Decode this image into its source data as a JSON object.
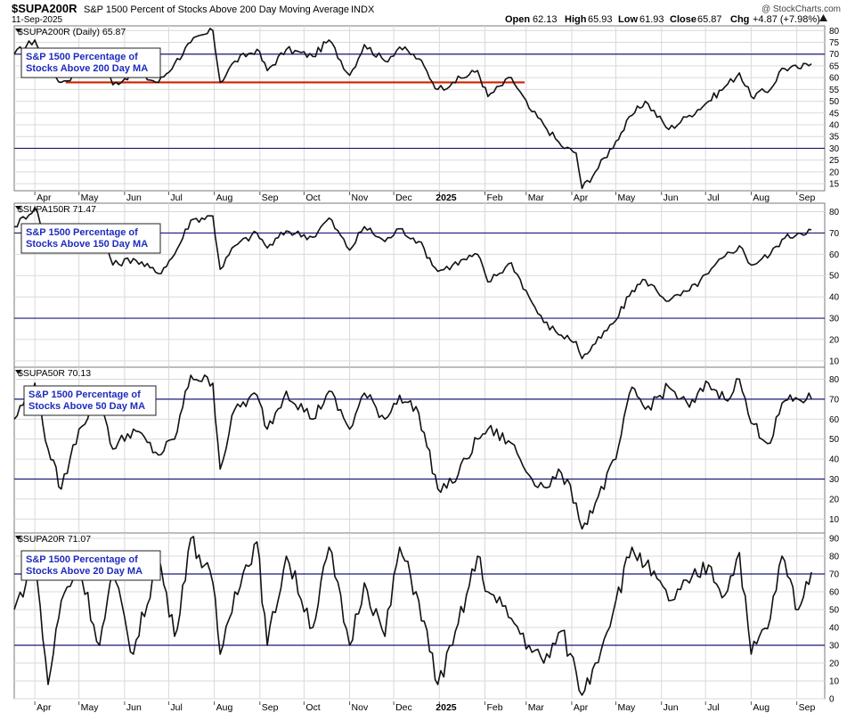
{
  "header": {
    "symbol": "$SUPA200R",
    "description": "S&P 1500 Percent of Stocks Above 200 Day Moving Average",
    "exchange": "INDX",
    "date": "11-Sep-2025",
    "watermark": "@ StockCharts.com",
    "open_label": "Open",
    "open": "62.13",
    "high_label": "High",
    "high": "65.93",
    "low_label": "Low",
    "low": "61.93",
    "close_label": "Close",
    "close": "65.87",
    "chg_label": "Chg",
    "chg": "+4.87 (+7.98%)",
    "chg_icon": "up-triangle-icon"
  },
  "colors": {
    "price_line": "#111111",
    "ref_line": "#1a1a7a",
    "support_line": "#cc2200",
    "label_text": "#1f2bbd",
    "gridline": "#d9d9d9"
  },
  "chart_data": [
    {
      "type": "line",
      "title": "$SUPA200R (Daily) 65.87",
      "label": "S&P 1500 Percentage of Stocks Above 200 Day MA",
      "label_lines": [
        "S&P 1500 Percentage of",
        "Stocks Above 200 Day MA"
      ],
      "ylim": [
        12,
        82
      ],
      "yticks": [
        15,
        20,
        25,
        30,
        35,
        40,
        45,
        50,
        55,
        60,
        65,
        70,
        75,
        80
      ],
      "reference_lines": [
        30,
        70
      ],
      "support_line": {
        "value": 58,
        "from": "2024-04-22",
        "to": "2025-02-28"
      },
      "x_ticks": [
        "Apr",
        "May",
        "Jun",
        "Jul",
        "Aug",
        "Sep",
        "Oct",
        "Nov",
        "Dec",
        "2025",
        "Feb",
        "Mar",
        "Apr",
        "May",
        "Jun",
        "Jul",
        "Aug",
        "Sep"
      ],
      "x_tick_dates": [
        "2024-04-01",
        "2024-05-01",
        "2024-06-01",
        "2024-07-01",
        "2024-08-01",
        "2024-09-01",
        "2024-10-01",
        "2024-11-01",
        "2024-12-01",
        "2025-01-01",
        "2025-02-01",
        "2025-03-01",
        "2025-04-01",
        "2025-05-01",
        "2025-06-01",
        "2025-07-01",
        "2025-08-01",
        "2025-09-01"
      ],
      "series": [
        {
          "x": [
            "2024-03-18",
            "2024-04-01",
            "2024-04-10",
            "2024-04-19",
            "2024-05-01",
            "2024-05-15",
            "2024-05-24",
            "2024-06-07",
            "2024-06-24",
            "2024-07-05",
            "2024-07-16",
            "2024-07-31",
            "2024-08-05",
            "2024-08-15",
            "2024-08-30",
            "2024-09-06",
            "2024-09-19",
            "2024-10-07",
            "2024-10-18",
            "2024-11-01",
            "2024-11-11",
            "2024-11-25",
            "2024-12-05",
            "2024-12-18",
            "2024-12-31",
            "2025-01-10",
            "2025-01-27",
            "2025-02-03",
            "2025-02-19",
            "2025-03-03",
            "2025-03-13",
            "2025-03-25",
            "2025-04-04",
            "2025-04-08",
            "2025-04-17",
            "2025-05-01",
            "2025-05-12",
            "2025-05-21",
            "2025-06-06",
            "2025-06-20",
            "2025-07-03",
            "2025-07-14",
            "2025-07-24",
            "2025-08-01",
            "2025-08-14",
            "2025-08-22",
            "2025-09-02",
            "2025-09-11"
          ],
          "values": [
            70,
            76,
            64,
            58,
            62,
            70,
            57,
            62,
            58,
            66,
            75,
            80,
            58,
            67,
            72,
            63,
            72,
            69,
            76,
            61,
            74,
            67,
            73,
            68,
            55,
            58,
            63,
            52,
            60,
            47,
            40,
            31,
            28,
            13,
            20,
            33,
            44,
            50,
            38,
            44,
            50,
            56,
            62,
            52,
            55,
            64,
            64,
            65.87
          ]
        }
      ]
    },
    {
      "type": "line",
      "title": "$SUPA150R 71.47",
      "label": "S&P 1500 Percentage of Stocks Above 150 Day MA",
      "label_lines": [
        "S&P 1500 Percentage of",
        "Stocks Above 150 Day MA"
      ],
      "ylim": [
        7,
        84
      ],
      "yticks": [
        10,
        20,
        30,
        40,
        50,
        60,
        70,
        80
      ],
      "reference_lines": [
        30,
        70
      ],
      "x_ticks": [],
      "series": [
        {
          "x": [
            "2024-03-18",
            "2024-04-01",
            "2024-04-10",
            "2024-04-19",
            "2024-05-01",
            "2024-05-15",
            "2024-05-24",
            "2024-06-07",
            "2024-06-24",
            "2024-07-05",
            "2024-07-16",
            "2024-07-31",
            "2024-08-05",
            "2024-08-15",
            "2024-08-30",
            "2024-09-06",
            "2024-09-19",
            "2024-10-07",
            "2024-10-18",
            "2024-11-01",
            "2024-11-11",
            "2024-11-25",
            "2024-12-05",
            "2024-12-18",
            "2024-12-31",
            "2025-01-10",
            "2025-01-27",
            "2025-02-03",
            "2025-02-19",
            "2025-03-03",
            "2025-03-13",
            "2025-03-25",
            "2025-04-04",
            "2025-04-08",
            "2025-04-17",
            "2025-05-01",
            "2025-05-12",
            "2025-05-21",
            "2025-06-06",
            "2025-06-20",
            "2025-07-03",
            "2025-07-14",
            "2025-07-24",
            "2025-08-01",
            "2025-08-14",
            "2025-08-22",
            "2025-09-02",
            "2025-09-11"
          ],
          "values": [
            73,
            82,
            66,
            62,
            67,
            74,
            55,
            58,
            51,
            60,
            76,
            78,
            53,
            64,
            70,
            63,
            71,
            68,
            77,
            62,
            73,
            66,
            72,
            66,
            52,
            55,
            60,
            47,
            56,
            40,
            28,
            22,
            19,
            11,
            18,
            29,
            43,
            48,
            38,
            43,
            51,
            59,
            64,
            55,
            60,
            67,
            70,
            71.47
          ]
        }
      ]
    },
    {
      "type": "line",
      "title": "$SUPA50R 70.13",
      "label": "S&P 1500 Percentage of Stocks Above 50 Day MA",
      "label_lines": [
        "S&P 1500 Percentage of",
        "Stocks Above 50 Day MA"
      ],
      "ylim": [
        3,
        86
      ],
      "yticks": [
        10,
        20,
        30,
        40,
        50,
        60,
        70,
        80
      ],
      "reference_lines": [
        30,
        70
      ],
      "x_ticks": [],
      "series": [
        {
          "x": [
            "2024-03-18",
            "2024-04-01",
            "2024-04-10",
            "2024-04-19",
            "2024-05-01",
            "2024-05-15",
            "2024-05-24",
            "2024-06-07",
            "2024-06-24",
            "2024-07-05",
            "2024-07-16",
            "2024-07-31",
            "2024-08-05",
            "2024-08-15",
            "2024-08-30",
            "2024-09-06",
            "2024-09-19",
            "2024-10-07",
            "2024-10-18",
            "2024-11-01",
            "2024-11-11",
            "2024-11-25",
            "2024-12-05",
            "2024-12-18",
            "2024-12-31",
            "2025-01-10",
            "2025-01-27",
            "2025-02-03",
            "2025-02-19",
            "2025-03-03",
            "2025-03-13",
            "2025-03-25",
            "2025-04-04",
            "2025-04-08",
            "2025-04-17",
            "2025-05-01",
            "2025-05-12",
            "2025-05-21",
            "2025-06-06",
            "2025-06-20",
            "2025-07-03",
            "2025-07-14",
            "2025-07-24",
            "2025-08-01",
            "2025-08-14",
            "2025-08-22",
            "2025-09-02",
            "2025-09-11"
          ],
          "values": [
            60,
            78,
            45,
            25,
            55,
            72,
            45,
            55,
            42,
            50,
            82,
            78,
            35,
            65,
            72,
            55,
            74,
            60,
            74,
            55,
            73,
            60,
            72,
            63,
            25,
            28,
            50,
            55,
            48,
            32,
            26,
            33,
            18,
            5,
            18,
            40,
            76,
            65,
            76,
            66,
            78,
            70,
            80,
            58,
            48,
            68,
            70,
            70.13
          ]
        }
      ]
    },
    {
      "type": "line",
      "title": "$SUPA20R 71.07",
      "label": "S&P 1500 Percentage of Stocks Above 20 Day MA",
      "label_lines": [
        "S&P 1500 Percentage of",
        "Stocks Above 20 Day MA"
      ],
      "ylim": [
        0,
        93
      ],
      "yticks": [
        0,
        10,
        20,
        30,
        40,
        50,
        60,
        70,
        80,
        90
      ],
      "reference_lines": [
        30,
        70
      ],
      "x_ticks": [
        "Apr",
        "May",
        "Jun",
        "Jul",
        "Aug",
        "Sep",
        "Oct",
        "Nov",
        "Dec",
        "2025",
        "Feb",
        "Mar",
        "Apr",
        "May",
        "Jun",
        "Jul",
        "Aug",
        "Sep"
      ],
      "x_tick_dates": [
        "2024-04-01",
        "2024-05-01",
        "2024-06-01",
        "2024-07-01",
        "2024-08-01",
        "2024-09-01",
        "2024-10-01",
        "2024-11-01",
        "2024-12-01",
        "2025-01-01",
        "2025-02-01",
        "2025-03-01",
        "2025-04-01",
        "2025-05-01",
        "2025-06-01",
        "2025-07-01",
        "2025-08-01",
        "2025-09-01"
      ],
      "series": [
        {
          "x": [
            "2024-03-18",
            "2024-04-01",
            "2024-04-10",
            "2024-04-19",
            "2024-05-01",
            "2024-05-15",
            "2024-05-24",
            "2024-06-07",
            "2024-06-24",
            "2024-07-05",
            "2024-07-16",
            "2024-07-31",
            "2024-08-05",
            "2024-08-15",
            "2024-08-30",
            "2024-09-06",
            "2024-09-19",
            "2024-10-07",
            "2024-10-18",
            "2024-11-01",
            "2024-11-11",
            "2024-11-25",
            "2024-12-05",
            "2024-12-18",
            "2024-12-31",
            "2025-01-10",
            "2025-01-27",
            "2025-02-03",
            "2025-02-19",
            "2025-03-03",
            "2025-03-13",
            "2025-03-25",
            "2025-04-04",
            "2025-04-08",
            "2025-04-17",
            "2025-05-01",
            "2025-05-12",
            "2025-05-21",
            "2025-06-06",
            "2025-06-20",
            "2025-07-03",
            "2025-07-14",
            "2025-07-24",
            "2025-08-01",
            "2025-08-14",
            "2025-08-22",
            "2025-09-02",
            "2025-09-11"
          ],
          "values": [
            50,
            78,
            8,
            55,
            75,
            30,
            70,
            25,
            80,
            35,
            90,
            65,
            25,
            60,
            88,
            30,
            80,
            40,
            85,
            30,
            65,
            35,
            85,
            55,
            8,
            30,
            80,
            60,
            45,
            30,
            20,
            38,
            15,
            2,
            20,
            55,
            85,
            75,
            55,
            65,
            75,
            58,
            82,
            25,
            45,
            80,
            50,
            71.07
          ]
        }
      ]
    }
  ]
}
